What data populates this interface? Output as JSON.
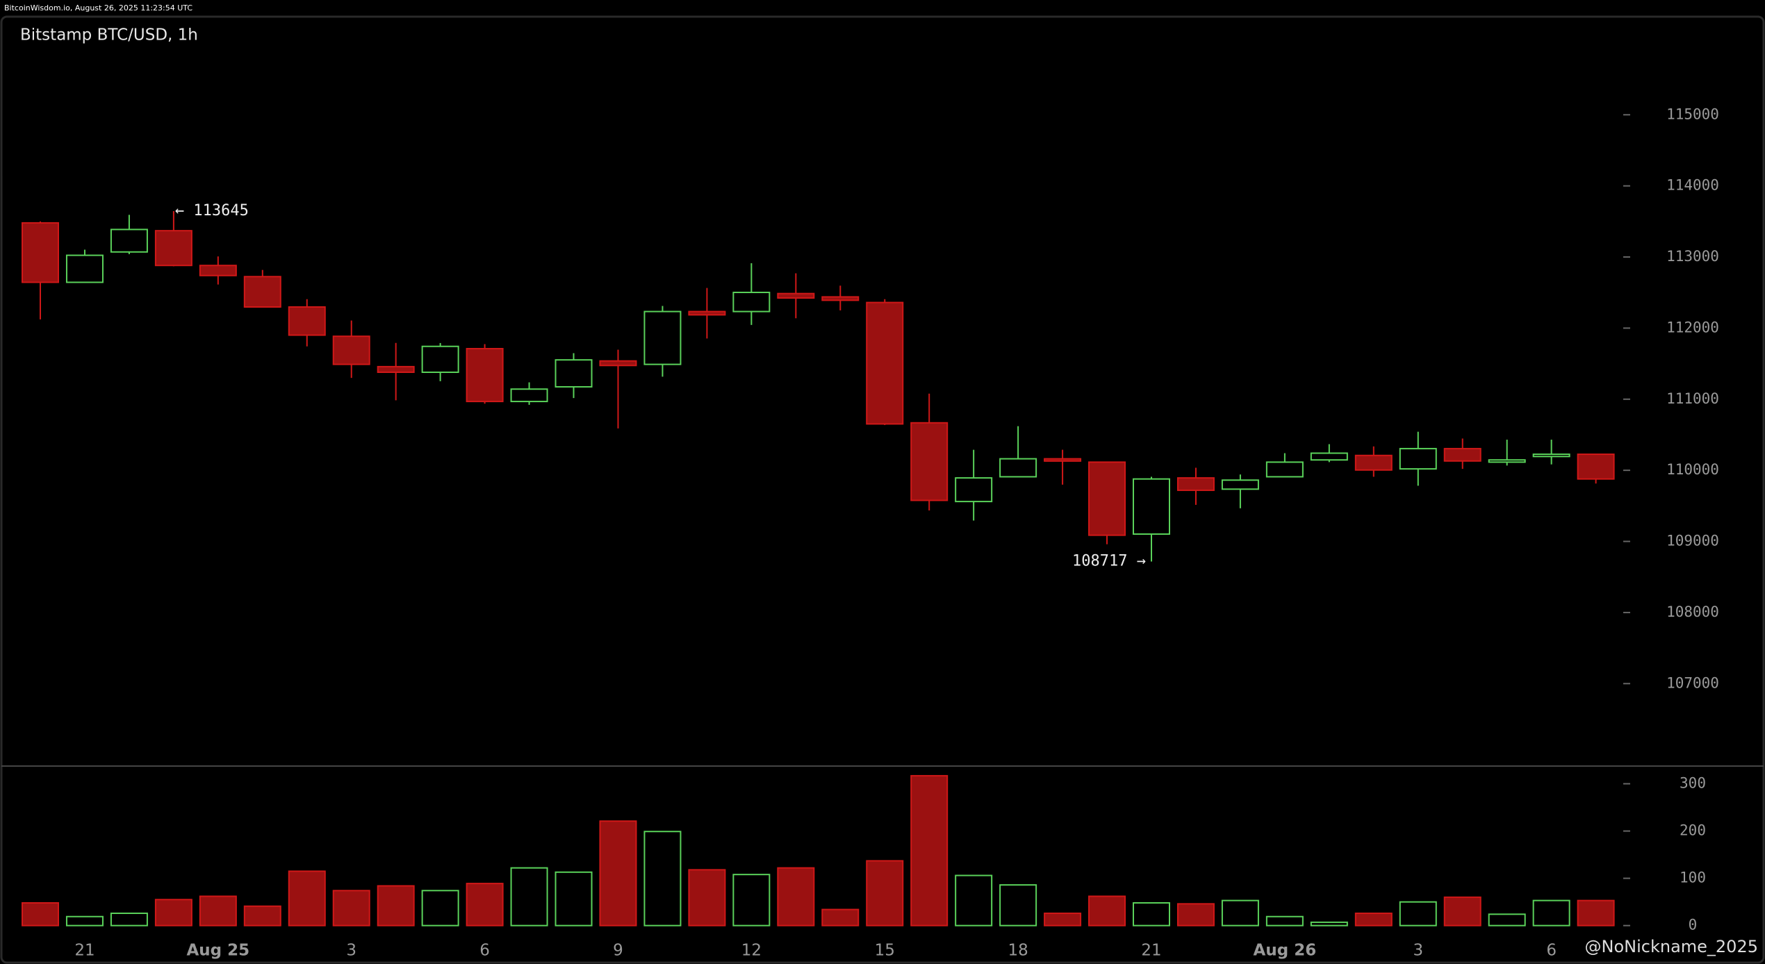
{
  "header": {
    "source": "BitcoinWisdom.io, August 26, 2025 11:23:54 UTC"
  },
  "watermark": "@NoNickname_2025",
  "chart_data": [
    {
      "type": "candlestick",
      "title": "Bitstamp BTC/USD, 1h",
      "categories": [
        null,
        "21",
        null,
        null,
        "Aug 25",
        null,
        null,
        "3",
        null,
        null,
        "6",
        null,
        null,
        "9",
        null,
        null,
        "12",
        null,
        null,
        "15",
        null,
        null,
        "18",
        null,
        null,
        "21",
        null,
        null,
        "Aug 26",
        null,
        null,
        "3",
        null,
        null,
        "6",
        null
      ],
      "open": [
        113480,
        112644,
        113071,
        113370,
        112881,
        112724,
        112297,
        111885,
        111458,
        111379,
        111711,
        110968,
        111174,
        111538,
        111490,
        112233,
        112233,
        112486,
        112439,
        112360,
        110668,
        109561,
        109909,
        110162,
        110115,
        109103,
        109893,
        109735,
        109909,
        110146,
        110209,
        110020,
        110305,
        110115,
        110194,
        110226
      ],
      "high": [
        113500,
        113103,
        113593,
        113645,
        113008,
        112818,
        112407,
        112107,
        111791,
        111790,
        111775,
        111237,
        111648,
        111696,
        112312,
        112565,
        112913,
        112771,
        112597,
        112407,
        111079,
        110289,
        110621,
        110289,
        110115,
        109909,
        110036,
        109941,
        110241,
        110368,
        110336,
        110542,
        110447,
        110431,
        110431,
        110226
      ],
      "low": [
        112123,
        112640,
        113040,
        112870,
        112613,
        112290,
        111743,
        111300,
        110984,
        111253,
        110937,
        110921,
        111016,
        110589,
        111316,
        111854,
        112044,
        112138,
        112249,
        110636,
        109435,
        109293,
        109909,
        109798,
        108960,
        108717,
        109514,
        109466,
        109909,
        110115,
        109909,
        109783,
        110020,
        110067,
        110083,
        109814
      ],
      "close": [
        112644,
        113024,
        113387,
        112881,
        112739,
        112297,
        111901,
        111490,
        111379,
        111743,
        110968,
        111142,
        111553,
        111474,
        112233,
        112186,
        112502,
        112423,
        112391,
        110652,
        109577,
        109893,
        110162,
        110130,
        109087,
        109878,
        109719,
        109862,
        110115,
        110241,
        110004,
        110305,
        110131,
        110146,
        110226,
        109878
      ],
      "up_color": "#5ad25a",
      "down_color": "#9b1111",
      "ylim": [
        105860,
        116380
      ],
      "yticks": [
        107000,
        108000,
        109000,
        110000,
        111000,
        112000,
        113000,
        114000,
        115000
      ],
      "annotations": [
        "← 113645",
        "108717 →"
      ]
    },
    {
      "type": "bar",
      "values": [
        48,
        19,
        26,
        55,
        62,
        41,
        115,
        74,
        84,
        74,
        89,
        122,
        113,
        221,
        199,
        118,
        108,
        122,
        34,
        137,
        317,
        106,
        86,
        26,
        62,
        48,
        46,
        53,
        19,
        7,
        26,
        50,
        60,
        24,
        53,
        53
      ],
      "ylim": [
        -24,
        336
      ],
      "yticks": [
        0,
        100,
        200,
        300
      ]
    }
  ]
}
